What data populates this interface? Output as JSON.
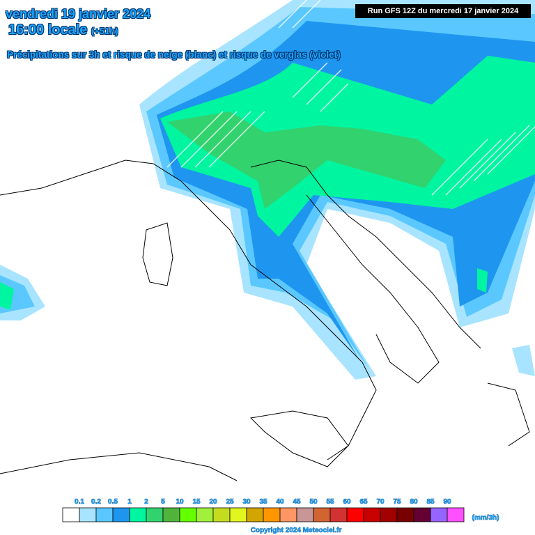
{
  "header": {
    "date": "vendredi 19 janvier 2024",
    "time": "16:00 locale",
    "lead": "(+51h)",
    "subtitle": "Précipitations sur 3h et risque de neige (blanc) et risque de verglas (violet)",
    "run": "Run GFS 12Z du mercredi 17 janvier 2024"
  },
  "legend": {
    "labels": [
      "0.1",
      "0.2",
      "0.5",
      "1",
      "2",
      "5",
      "10",
      "15",
      "20",
      "25",
      "30",
      "35",
      "40",
      "45",
      "50",
      "55",
      "60",
      "65",
      "70",
      "75",
      "80",
      "85",
      "90"
    ],
    "colors": [
      "#ffffff",
      "#a8e4ff",
      "#5ac8ff",
      "#1e96f0",
      "#00f5a0",
      "#32d26e",
      "#50b43c",
      "#64ff00",
      "#a0f03c",
      "#c3dc1e",
      "#e1f51e",
      "#d2a500",
      "#ff9600",
      "#ff9664",
      "#c89696",
      "#d26432",
      "#d23232",
      "#ff0000",
      "#c80000",
      "#a00000",
      "#780000",
      "#640032",
      "#9664ff",
      "#ff50ff"
    ],
    "unit": "(mm/3h)"
  },
  "footer": {
    "copyright": "Copyright 2024 Meteociel.fr"
  }
}
